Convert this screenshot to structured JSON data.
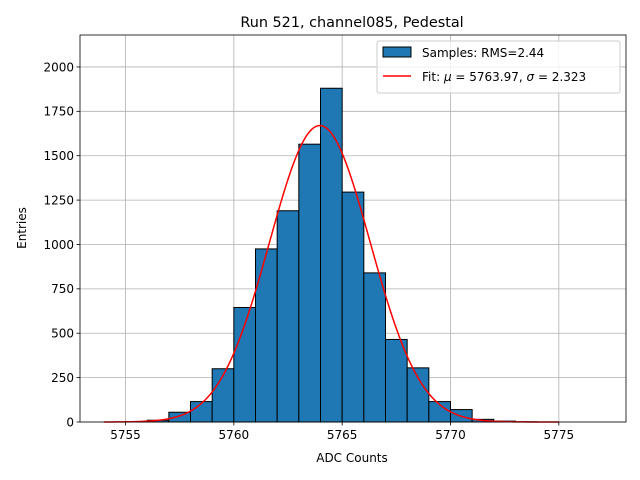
{
  "chart_data": {
    "type": "histogram",
    "title": "Run 521, channel085, Pedestal",
    "xlabel": "ADC Counts",
    "ylabel": "Entries",
    "xlim": [
      5752.9,
      5778.1
    ],
    "ylim": [
      0,
      2180
    ],
    "xticks": [
      5755,
      5760,
      5765,
      5770,
      5775
    ],
    "yticks": [
      0,
      250,
      500,
      750,
      1000,
      1250,
      1500,
      1750,
      2000
    ],
    "grid": true,
    "legend_position": "top-right",
    "bin_width": 1,
    "bins": [
      {
        "left": 5755,
        "count": 2
      },
      {
        "left": 5756,
        "count": 10
      },
      {
        "left": 5757,
        "count": 55
      },
      {
        "left": 5758,
        "count": 115
      },
      {
        "left": 5759,
        "count": 300
      },
      {
        "left": 5760,
        "count": 645
      },
      {
        "left": 5761,
        "count": 975
      },
      {
        "left": 5762,
        "count": 1190
      },
      {
        "left": 5763,
        "count": 1565
      },
      {
        "left": 5764,
        "count": 1880
      },
      {
        "left": 5765,
        "count": 1295
      },
      {
        "left": 5766,
        "count": 840
      },
      {
        "left": 5767,
        "count": 465
      },
      {
        "left": 5768,
        "count": 305
      },
      {
        "left": 5769,
        "count": 115
      },
      {
        "left": 5770,
        "count": 70
      },
      {
        "left": 5771,
        "count": 15
      },
      {
        "left": 5772,
        "count": 5
      },
      {
        "left": 5773,
        "count": 1
      }
    ],
    "fit": {
      "mu": 5763.97,
      "sigma": 2.323,
      "amplitude": 1670,
      "x_range": [
        5754,
        5775
      ]
    },
    "series": [
      {
        "name": "Samples: RMS=2.44",
        "kind": "bars",
        "color": "#1f77b4"
      },
      {
        "name": "Fit: μ = 5763.97, σ = 2.323",
        "kind": "line",
        "color": "#ff0000"
      }
    ]
  },
  "legend": {
    "samples_label": "Samples: RMS=2.44",
    "fit_prefix": "Fit: ",
    "fit_mu_symbol": "μ",
    "fit_mu_value": " = 5763.97, ",
    "fit_sigma_symbol": "σ",
    "fit_sigma_value": " = 2.323"
  },
  "colors": {
    "bar_fill": "#1f77b4",
    "bar_edge": "#000000",
    "fit_line": "#ff0000",
    "grid": "#b0b0b0"
  }
}
